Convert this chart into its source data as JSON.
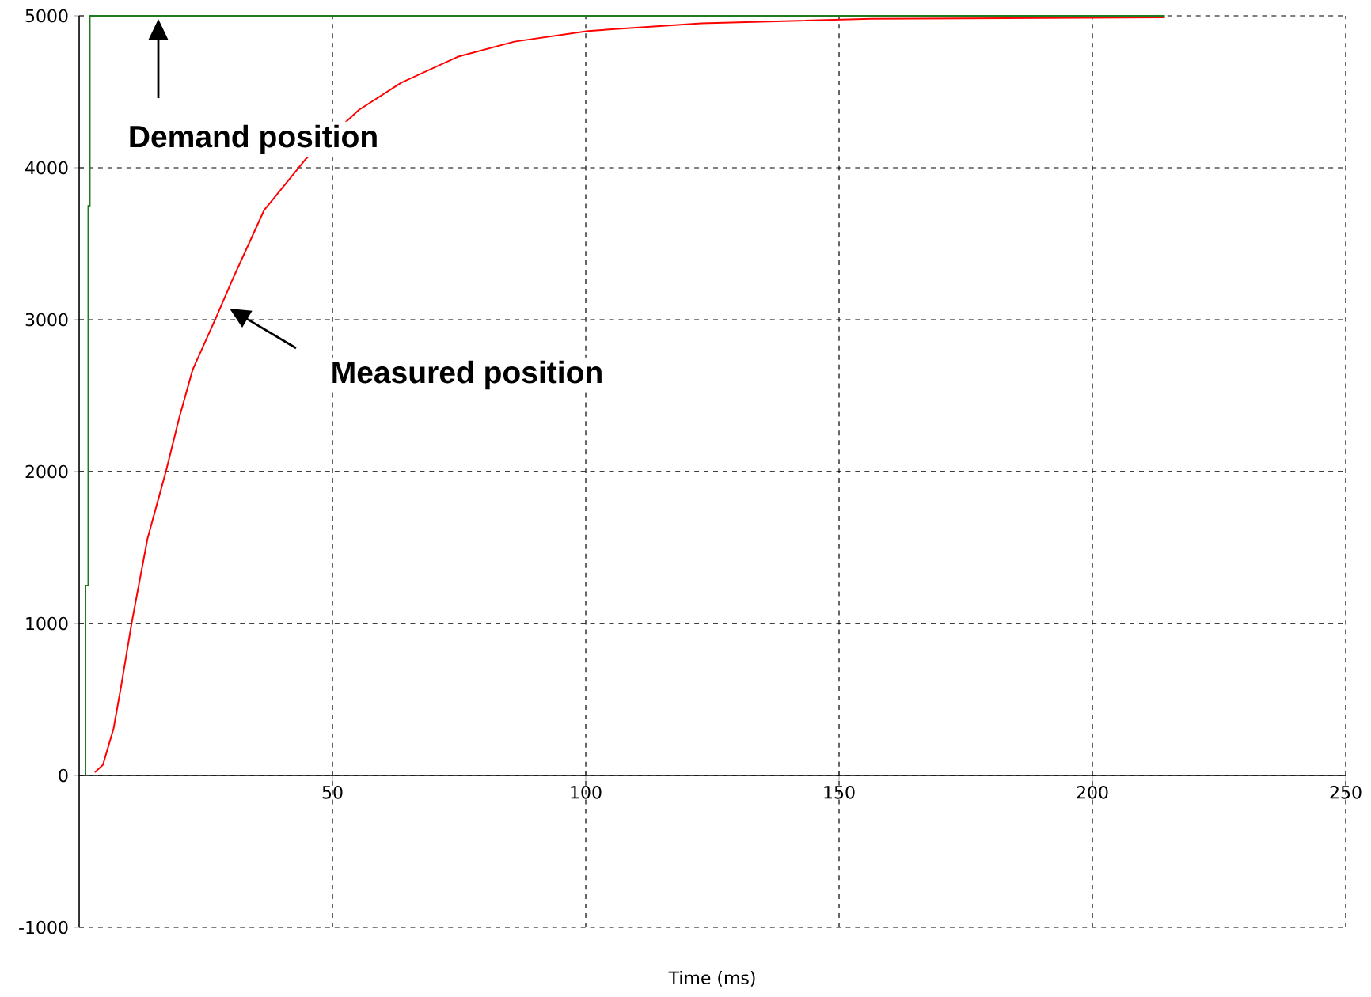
{
  "chart_data": {
    "type": "line",
    "xlabel": "Time (ms)",
    "xlim": [
      0,
      250
    ],
    "ylim": [
      -1000,
      5000
    ],
    "xticks": [
      50,
      100,
      150,
      200,
      250
    ],
    "yticks": [
      -1000,
      0,
      1000,
      2000,
      3000,
      4000,
      5000
    ],
    "grid": true,
    "legend": false,
    "marker": "none",
    "line_style": "solid",
    "series": [
      {
        "color": "#207a20",
        "x": [
          1.25,
          1.25,
          1.8,
          1.8,
          2.1,
          2.1,
          214.3
        ],
        "values": [
          0,
          1250,
          1250,
          3750,
          3750,
          5000,
          5000
        ]
      },
      {
        "color": "#ff0000",
        "x": [
          3.1,
          4.7,
          6.8,
          8.3,
          10.4,
          13.5,
          17.2,
          19.8,
          22.4,
          27.1,
          30.2,
          36.5,
          44.8,
          55.2,
          63.6,
          74.7,
          85.9,
          100.4,
          122.8,
          156.3,
          214.3
        ],
        "values": [
          20,
          70,
          310,
          590,
          1010,
          1560,
          2010,
          2360,
          2670,
          3020,
          3260,
          3720,
          4060,
          4380,
          4560,
          4730,
          4830,
          4900,
          4950,
          4980,
          4990
        ]
      }
    ],
    "annotations": [
      "Demand position",
      "Measured position"
    ]
  }
}
